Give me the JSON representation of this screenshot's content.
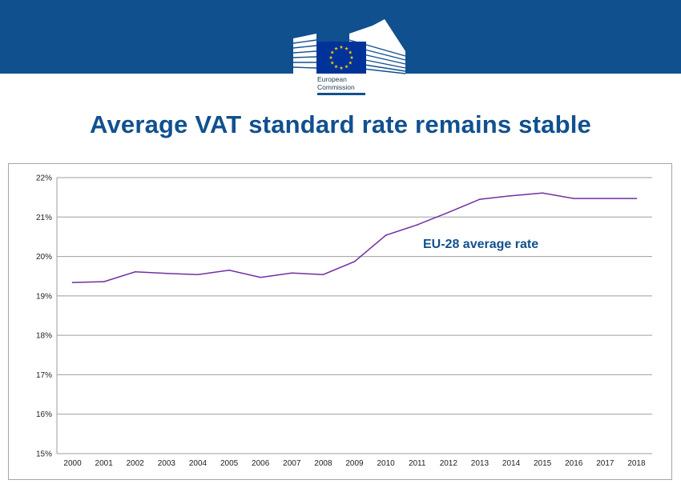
{
  "header": {
    "logo_line1": "European",
    "logo_line2": "Commission",
    "banner_color": "#11508f",
    "flag_color": "#003399",
    "star_color": "#ffcc00"
  },
  "title": "Average VAT standard rate remains stable",
  "chart_data": {
    "type": "line",
    "title": "",
    "xlabel": "",
    "ylabel": "",
    "categories": [
      "2000",
      "2001",
      "2002",
      "2003",
      "2004",
      "2005",
      "2006",
      "2007",
      "2008",
      "2009",
      "2010",
      "2011",
      "2012",
      "2013",
      "2014",
      "2015",
      "2016",
      "2017",
      "2018"
    ],
    "series": [
      {
        "name": "EU-28 average rate",
        "color": "#7030a0",
        "values": [
          19.34,
          19.36,
          19.61,
          19.57,
          19.54,
          19.65,
          19.47,
          19.58,
          19.54,
          19.87,
          20.54,
          20.8,
          21.12,
          21.45,
          21.54,
          21.61,
          21.47,
          21.47,
          21.47
        ]
      }
    ],
    "ylim": [
      15,
      22
    ],
    "yticks": [
      "15%",
      "16%",
      "17%",
      "18%",
      "19%",
      "20%",
      "21%",
      "22%"
    ],
    "grid": true,
    "legend": "none",
    "annotation": "EU-28 average rate"
  }
}
